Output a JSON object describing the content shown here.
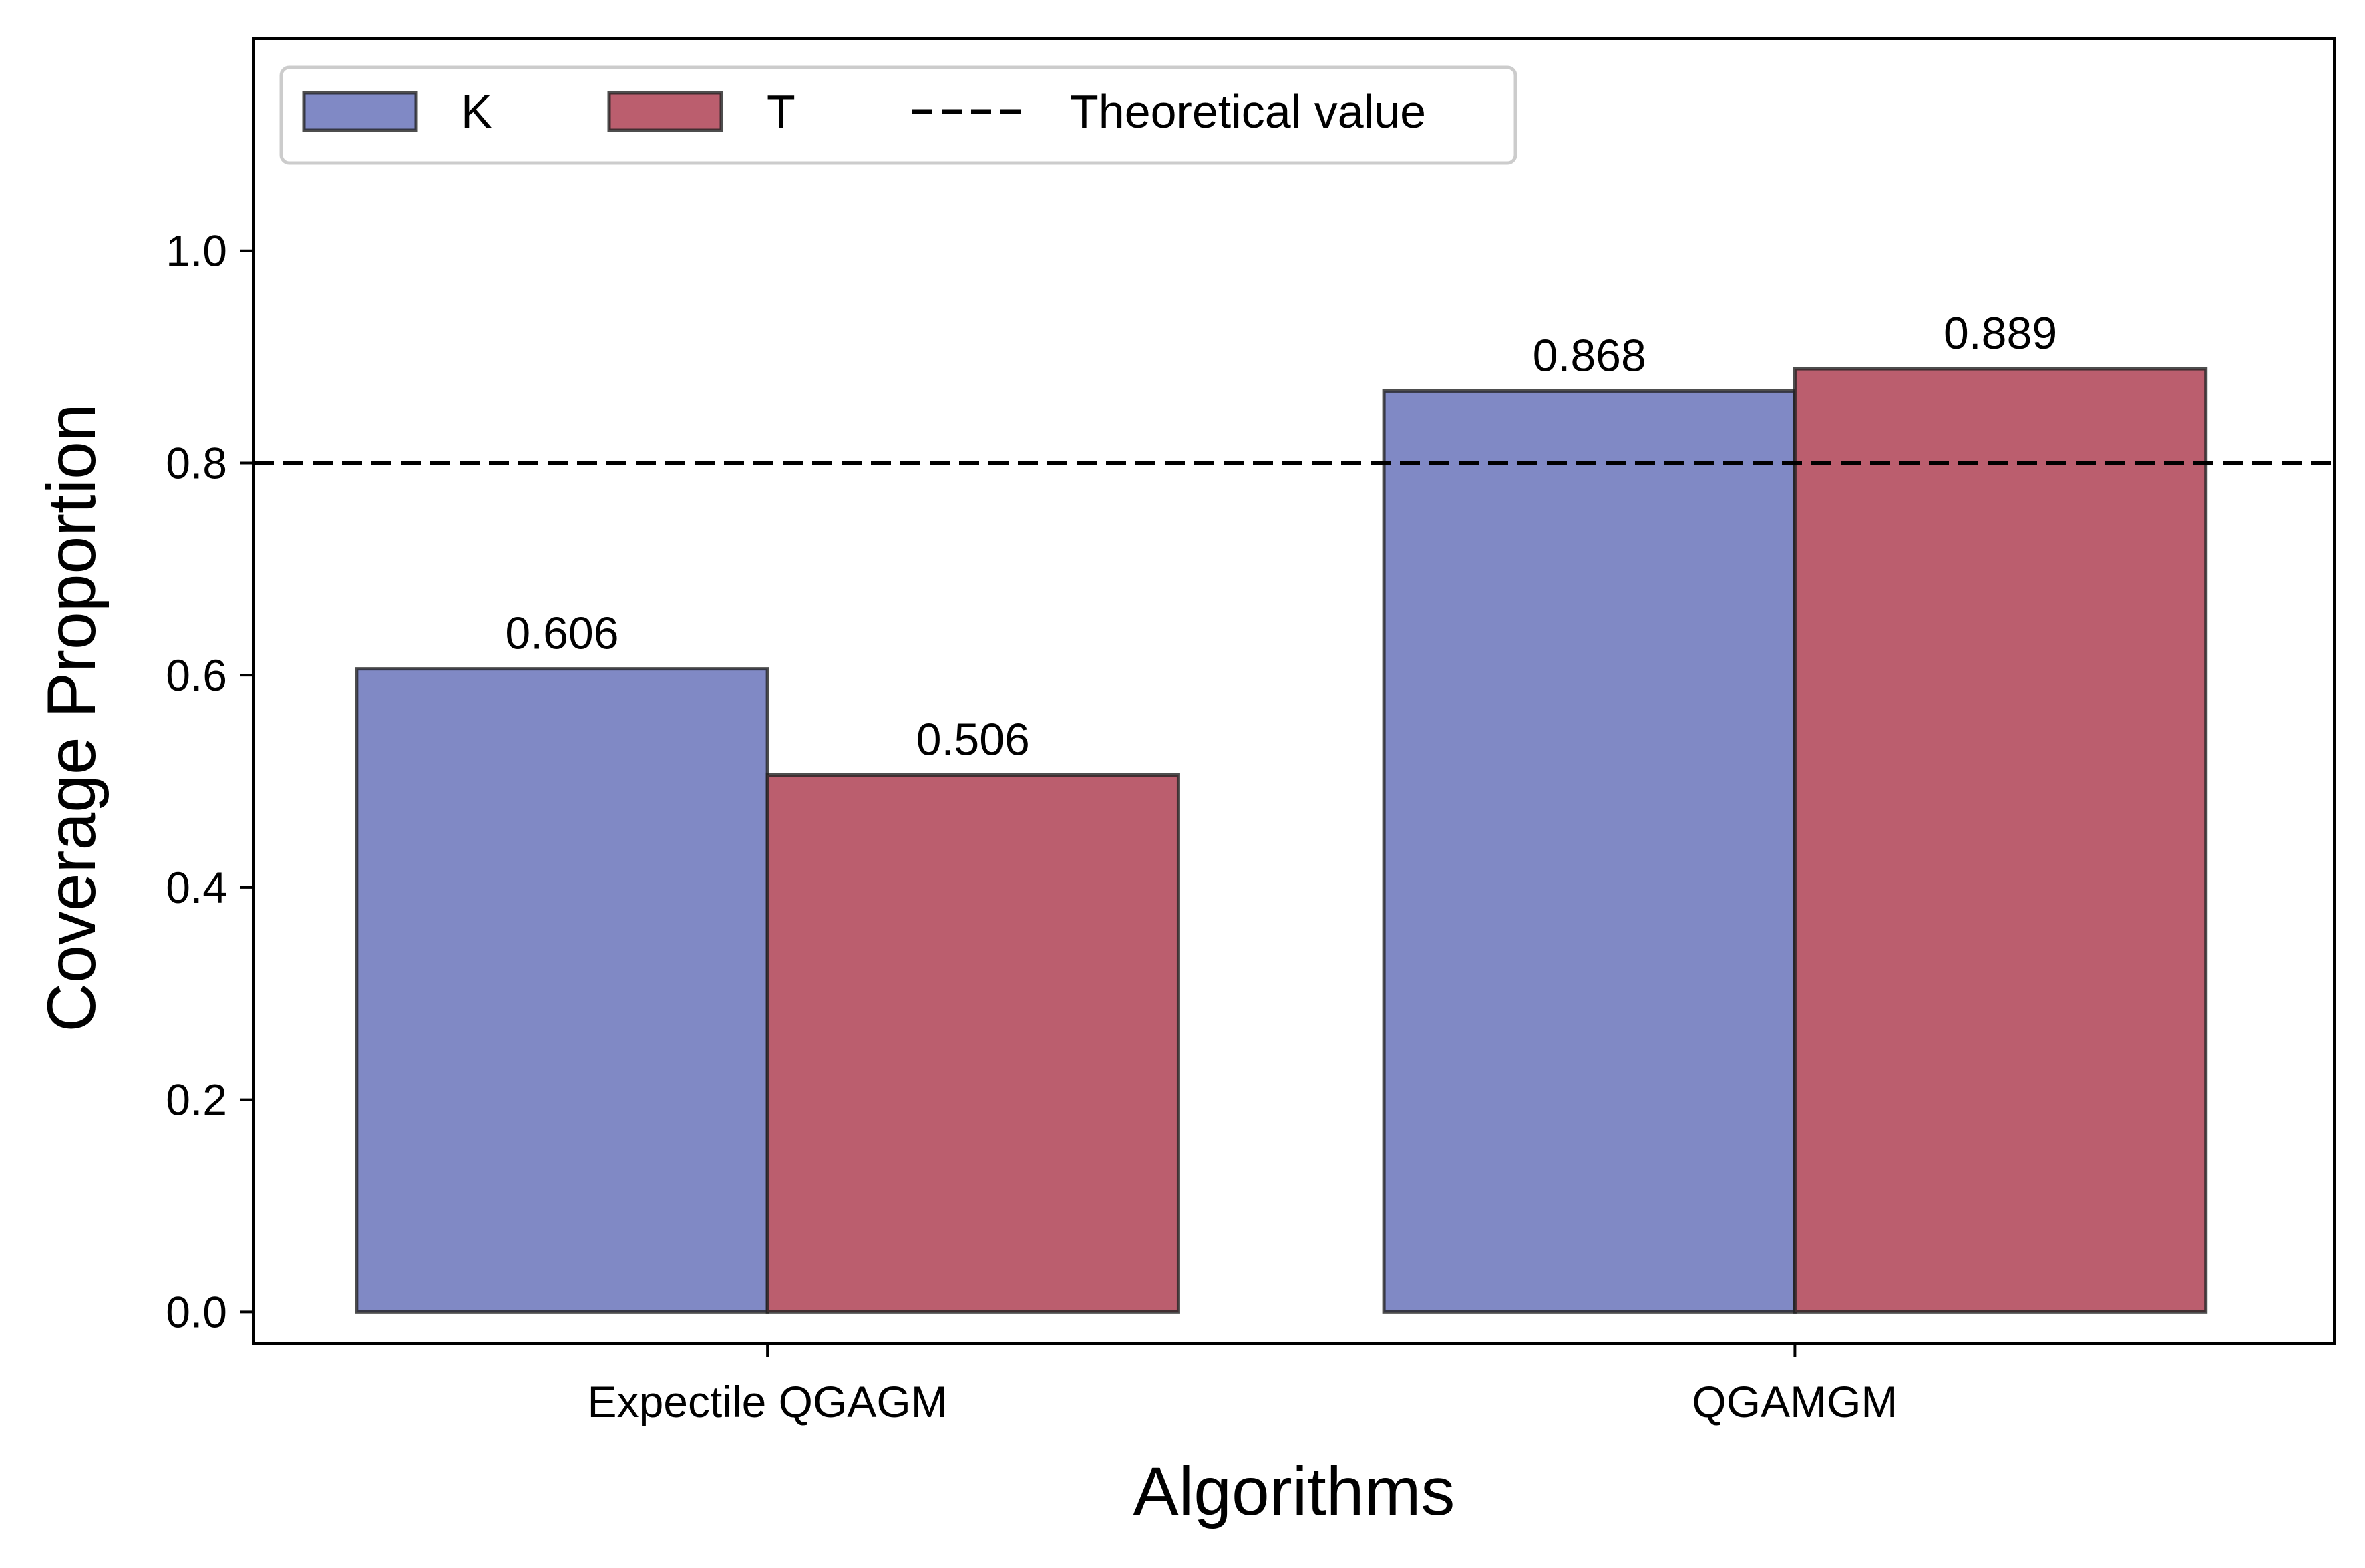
{
  "chart_data": {
    "type": "bar",
    "title": "",
    "xlabel": "Algorithms",
    "ylabel": "Coverage Proportion",
    "categories": [
      "Expectile QGAGM",
      "QGAMGM"
    ],
    "series": [
      {
        "name": "K",
        "values": [
          0.606,
          0.868
        ],
        "color": "#8089c5"
      },
      {
        "name": "T",
        "values": [
          0.506,
          0.889
        ],
        "color": "#bb5e6e"
      }
    ],
    "data_labels": [
      [
        "0.606",
        "0.868"
      ],
      [
        "0.506",
        "0.889"
      ]
    ],
    "reference_line": {
      "name": "Theoretical value",
      "value": 0.8,
      "style": "dashed",
      "color": "#000000"
    },
    "ylim": [
      -0.03,
      1.2
    ],
    "yticks": [
      0.0,
      0.2,
      0.4,
      0.6,
      0.8,
      1.0
    ],
    "ytick_labels": [
      "0.0",
      "0.2",
      "0.4",
      "0.6",
      "0.8",
      "1.0"
    ],
    "grid": false,
    "legend": {
      "position": "top-left",
      "entries": [
        "K",
        "T",
        "Theoretical value"
      ]
    }
  }
}
